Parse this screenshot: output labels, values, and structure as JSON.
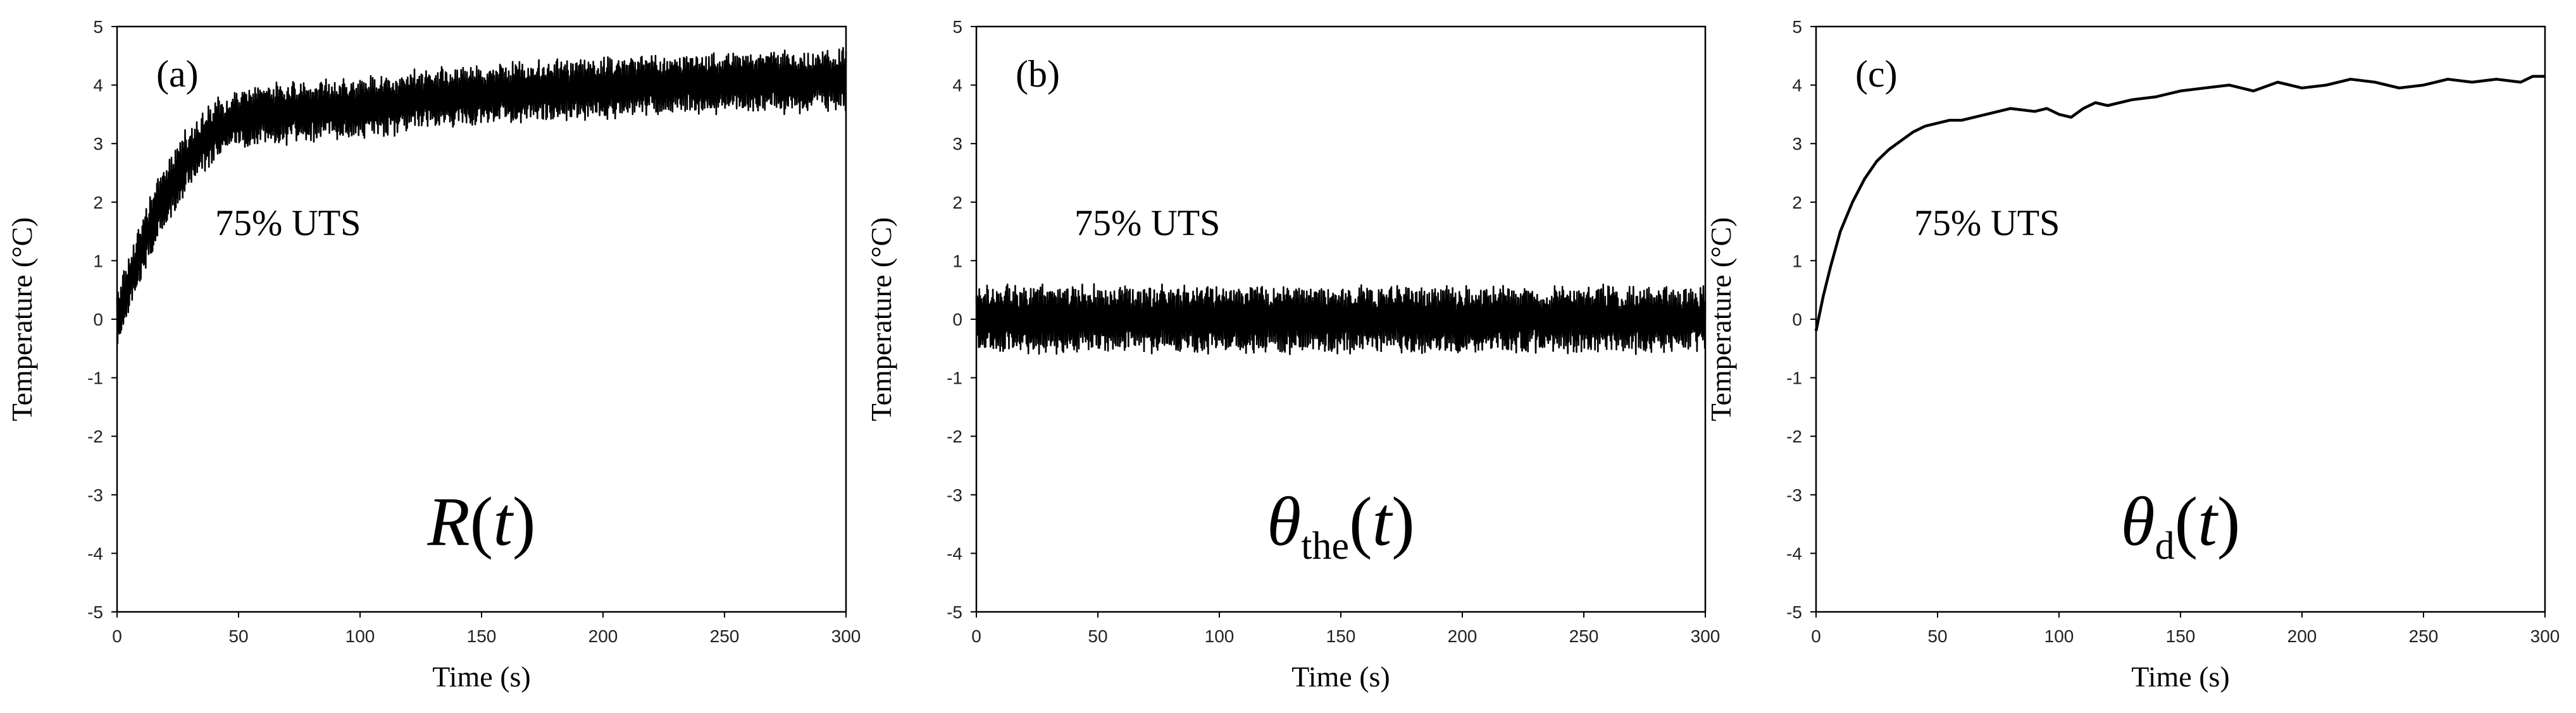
{
  "chart_data": [
    {
      "type": "line",
      "panel_label": "(a)",
      "annotation": "75% UTS",
      "formula": {
        "main": "R",
        "sub": "",
        "arg": "t"
      },
      "xlabel": "Time (s)",
      "ylabel": "Temperature (°C)",
      "xlim": [
        0,
        300
      ],
      "ylim": [
        -5,
        5
      ],
      "xticks": [
        "0",
        "50",
        "100",
        "150",
        "200",
        "250",
        "300"
      ],
      "yticks": [
        "5",
        "4",
        "3",
        "2",
        "1",
        "0",
        "-1",
        "-2",
        "-3",
        "-4",
        "-5"
      ],
      "series": [
        {
          "name": "R(t)",
          "style": "noisy",
          "noise_amplitude": 0.5,
          "x": [
            0,
            5,
            10,
            15,
            20,
            25,
            30,
            40,
            50,
            60,
            75,
            100,
            125,
            150,
            175,
            200,
            225,
            250,
            275,
            300
          ],
          "y": [
            0.0,
            0.6,
            1.2,
            1.7,
            2.1,
            2.5,
            2.8,
            3.2,
            3.4,
            3.5,
            3.55,
            3.6,
            3.75,
            3.85,
            3.9,
            3.95,
            4.0,
            4.05,
            4.05,
            4.1
          ]
        }
      ]
    },
    {
      "type": "line",
      "panel_label": "(b)",
      "annotation": "75% UTS",
      "formula": {
        "main": "θ",
        "sub": "the",
        "arg": "t"
      },
      "xlabel": "Time (s)",
      "ylabel": "Temperature (°C)",
      "xlim": [
        0,
        300
      ],
      "ylim": [
        -5,
        5
      ],
      "xticks": [
        "0",
        "50",
        "100",
        "150",
        "200",
        "250",
        "300"
      ],
      "yticks": [
        "5",
        "4",
        "3",
        "2",
        "1",
        "0",
        "-1",
        "-2",
        "-3",
        "-4",
        "-5"
      ],
      "series": [
        {
          "name": "θthe(t)",
          "style": "noisy",
          "noise_amplitude": 0.55,
          "x": [
            0,
            50,
            100,
            150,
            200,
            250,
            300
          ],
          "y": [
            0.0,
            0.0,
            0.0,
            0.0,
            0.0,
            0.0,
            0.0
          ]
        }
      ]
    },
    {
      "type": "line",
      "panel_label": "(c)",
      "annotation": "75% UTS",
      "formula": {
        "main": "θ",
        "sub": "d",
        "arg": "t"
      },
      "xlabel": "Time (s)",
      "ylabel": "Temperature (°C)",
      "xlim": [
        0,
        300
      ],
      "ylim": [
        -5,
        5
      ],
      "xticks": [
        "0",
        "50",
        "100",
        "150",
        "200",
        "250",
        "300"
      ],
      "yticks": [
        "5",
        "4",
        "3",
        "2",
        "1",
        "0",
        "-1",
        "-2",
        "-3",
        "-4",
        "-5"
      ],
      "series": [
        {
          "name": "θd(t)",
          "style": "smooth",
          "x": [
            0,
            3,
            6,
            10,
            15,
            20,
            25,
            30,
            35,
            40,
            45,
            50,
            55,
            60,
            70,
            80,
            90,
            95,
            100,
            105,
            110,
            115,
            120,
            130,
            140,
            150,
            160,
            170,
            175,
            180,
            190,
            200,
            210,
            220,
            230,
            240,
            250,
            255,
            260,
            270,
            280,
            290,
            295,
            300
          ],
          "y": [
            -0.2,
            0.4,
            0.9,
            1.5,
            2.0,
            2.4,
            2.7,
            2.9,
            3.05,
            3.2,
            3.3,
            3.35,
            3.4,
            3.4,
            3.5,
            3.6,
            3.55,
            3.6,
            3.5,
            3.45,
            3.6,
            3.7,
            3.65,
            3.75,
            3.8,
            3.9,
            3.95,
            4.0,
            3.95,
            3.9,
            4.05,
            3.95,
            4.0,
            4.1,
            4.05,
            3.95,
            4.0,
            4.05,
            4.1,
            4.05,
            4.1,
            4.05,
            4.15,
            4.15
          ]
        }
      ]
    }
  ]
}
